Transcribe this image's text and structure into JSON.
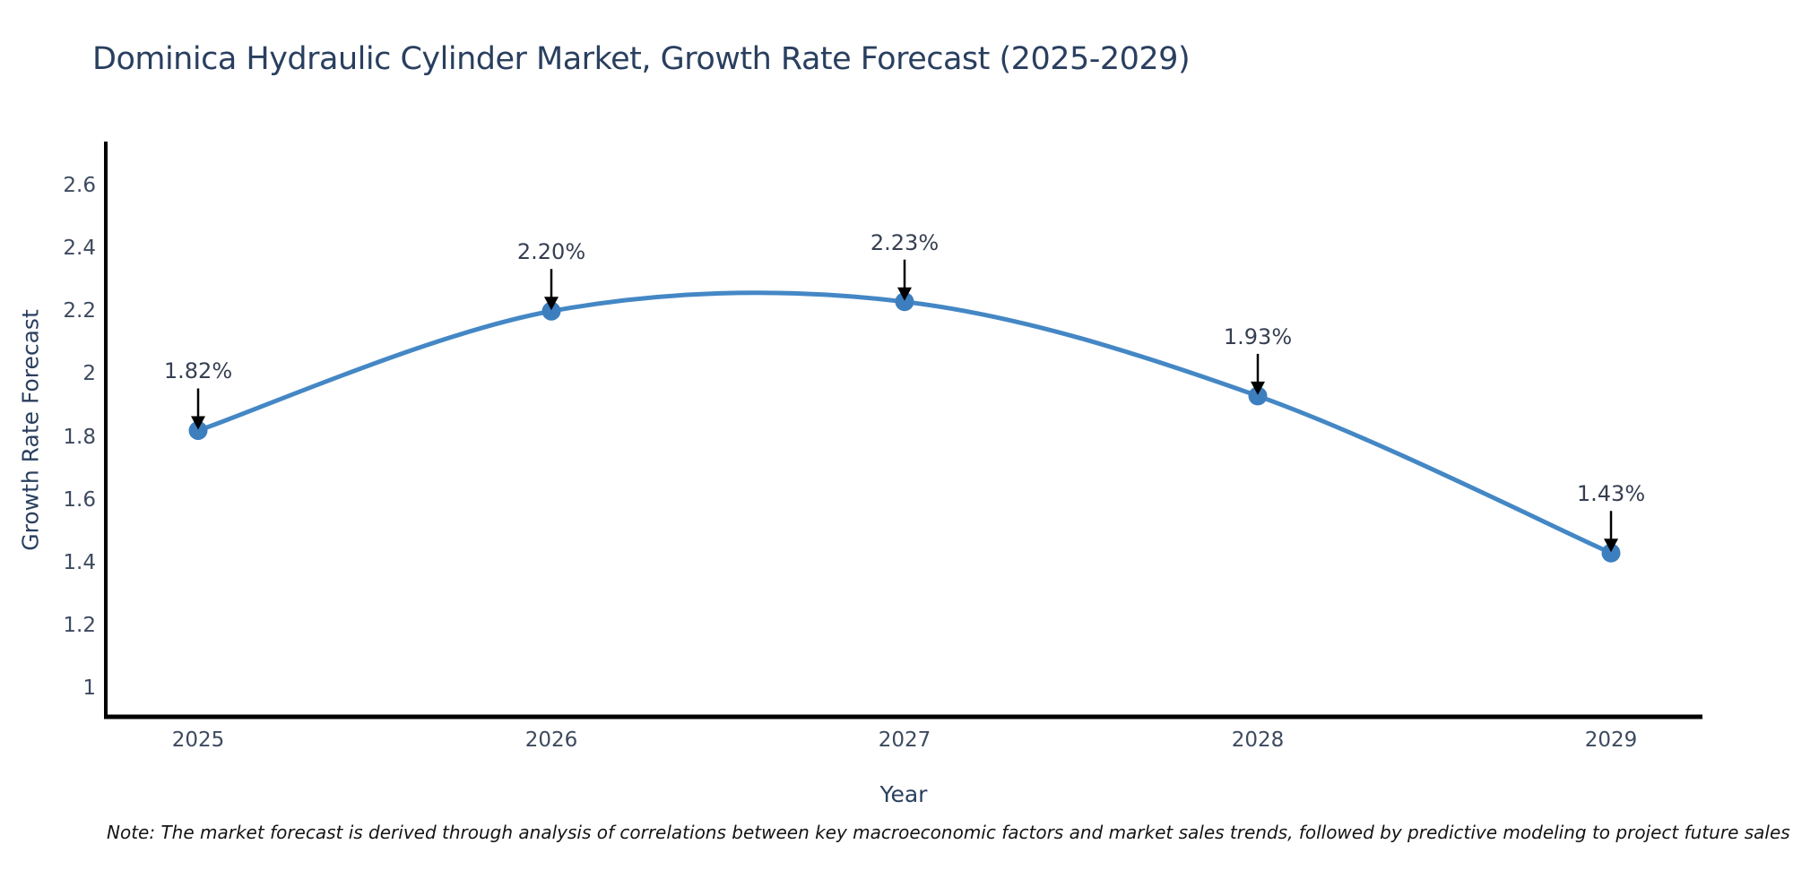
{
  "title": "Dominica Hydraulic Cylinder Market, Growth Rate Forecast (2025-2029)",
  "note": "Note: The market forecast is derived through analysis of correlations between key macroeconomic factors and market sales trends, followed by predictive modeling to project future sales",
  "chart_data": {
    "type": "line",
    "title": "Dominica Hydraulic Cylinder Market, Growth Rate Forecast (2025-2029)",
    "xlabel": "Year",
    "ylabel": "Growth Rate Forecast",
    "x": [
      2025,
      2026,
      2027,
      2028,
      2029
    ],
    "xtick_labels": [
      "2025",
      "2026",
      "2027",
      "2028",
      "2029"
    ],
    "series": [
      {
        "name": "Growth Rate Forecast",
        "values": [
          1.82,
          2.2,
          2.23,
          1.93,
          1.43
        ],
        "point_labels": [
          "1.82%",
          "2.20%",
          "2.23%",
          "1.93%",
          "1.43%"
        ]
      }
    ],
    "ytick_values": [
      1,
      1.2,
      1.4,
      1.6,
      1.8,
      2,
      2.2,
      2.4,
      2.6
    ],
    "ytick_labels": [
      "1",
      "1.2",
      "1.4",
      "1.6",
      "1.8",
      "2",
      "2.2",
      "2.4",
      "2.6"
    ],
    "ylim": [
      0.91,
      2.74
    ],
    "grid": false,
    "legend": false,
    "line_shape": "spline",
    "annotations": "value labels with downward black arrows onto each marker",
    "colors": {
      "line": "#4487c5",
      "marker": "#3d7ebf",
      "arrow": "#000000",
      "axis": "#000000",
      "title_text": "#2a3f5f",
      "tick_text": "#3d4a5f",
      "note_text": "#141414",
      "background": "#ffffff"
    }
  }
}
